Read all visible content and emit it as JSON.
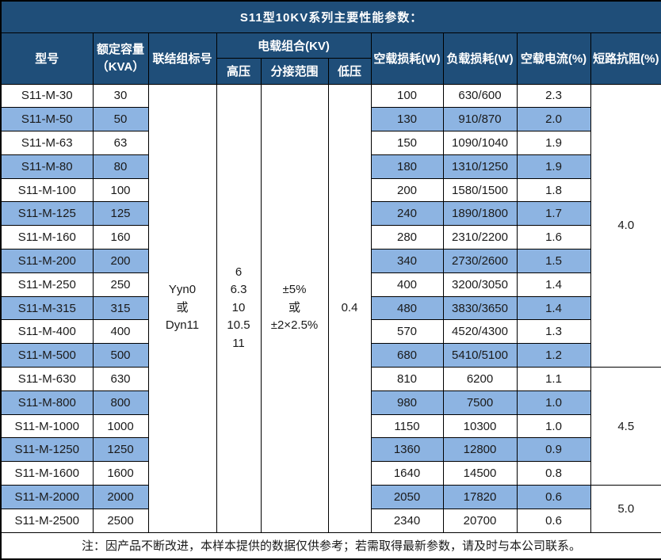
{
  "title": "S11型10KV系列主要性能参数：",
  "header": {
    "model": "型号",
    "capacity_lines": [
      "额定容量",
      "（KVA）"
    ],
    "connection": "联结组标号",
    "load_combo": "电载组合(KV)",
    "hv": "高压",
    "tap_range": "分接范围",
    "lv": "低压",
    "no_load_loss": "空载损耗(W)",
    "load_loss": "负载损耗(W)",
    "no_load_current": "空载电流(%)",
    "impedance": "短路抗阻(%)"
  },
  "merged": {
    "connection_lines": [
      "Yyn0",
      "或",
      "Dyn11"
    ],
    "hv_lines": [
      "6",
      "6.3",
      "10",
      "10.5",
      "11"
    ],
    "tap_lines": [
      "±5%",
      "或",
      "±2×2.5%"
    ],
    "lv": "0.4",
    "impedance_groups": [
      {
        "value": "4.0",
        "row_span": 12
      },
      {
        "value": "4.5",
        "row_span": 5
      },
      {
        "value": "5.0",
        "row_span": 2
      }
    ]
  },
  "rows": [
    {
      "model": "S11-M-30",
      "kva": "30",
      "no_load": "100",
      "load_loss": "630/600",
      "current": "2.3"
    },
    {
      "model": "S11-M-50",
      "kva": "50",
      "no_load": "130",
      "load_loss": "910/870",
      "current": "2.0"
    },
    {
      "model": "S11-M-63",
      "kva": "63",
      "no_load": "150",
      "load_loss": "1090/1040",
      "current": "1.9"
    },
    {
      "model": "S11-M-80",
      "kva": "80",
      "no_load": "180",
      "load_loss": "1310/1250",
      "current": "1.9"
    },
    {
      "model": "S11-M-100",
      "kva": "100",
      "no_load": "200",
      "load_loss": "1580/1500",
      "current": "1.8"
    },
    {
      "model": "S11-M-125",
      "kva": "125",
      "no_load": "240",
      "load_loss": "1890/1800",
      "current": "1.7"
    },
    {
      "model": "S11-M-160",
      "kva": "160",
      "no_load": "280",
      "load_loss": "2310/2200",
      "current": "1.6"
    },
    {
      "model": "S11-M-200",
      "kva": "200",
      "no_load": "340",
      "load_loss": "2730/2600",
      "current": "1.5"
    },
    {
      "model": "S11-M-250",
      "kva": "250",
      "no_load": "400",
      "load_loss": "3200/3050",
      "current": "1.4"
    },
    {
      "model": "S11-M-315",
      "kva": "315",
      "no_load": "480",
      "load_loss": "3830/3650",
      "current": "1.4"
    },
    {
      "model": "S11-M-400",
      "kva": "400",
      "no_load": "570",
      "load_loss": "4520/4300",
      "current": "1.3"
    },
    {
      "model": "S11-M-500",
      "kva": "500",
      "no_load": "680",
      "load_loss": "5410/5100",
      "current": "1.2"
    },
    {
      "model": "S11-M-630",
      "kva": "630",
      "no_load": "810",
      "load_loss": "6200",
      "current": "1.1"
    },
    {
      "model": "S11-M-800",
      "kva": "800",
      "no_load": "980",
      "load_loss": "7500",
      "current": "1.0"
    },
    {
      "model": "S11-M-1000",
      "kva": "1000",
      "no_load": "1150",
      "load_loss": "10300",
      "current": "1.0"
    },
    {
      "model": "S11-M-1250",
      "kva": "1250",
      "no_load": "1360",
      "load_loss": "12800",
      "current": "0.9"
    },
    {
      "model": "S11-M-1600",
      "kva": "1600",
      "no_load": "1640",
      "load_loss": "14500",
      "current": "0.8"
    },
    {
      "model": "S11-M-2000",
      "kva": "2000",
      "no_load": "2050",
      "load_loss": "17820",
      "current": "0.6"
    },
    {
      "model": "S11-M-2500",
      "kva": "2500",
      "no_load": "2340",
      "load_loss": "20700",
      "current": "0.6"
    }
  ],
  "footer_note": "注：因产品不断改进，本样本提供的数据仅供参考；若需取得最新参数，请及时与本公司联系。",
  "colors": {
    "header_bg": "#1F4E79",
    "stripe_bg": "#8DB4E2",
    "row_bg": "#FFFFFF",
    "border": "#000000",
    "header_text": "#FFFFFF",
    "body_text": "#1A1A1A"
  }
}
